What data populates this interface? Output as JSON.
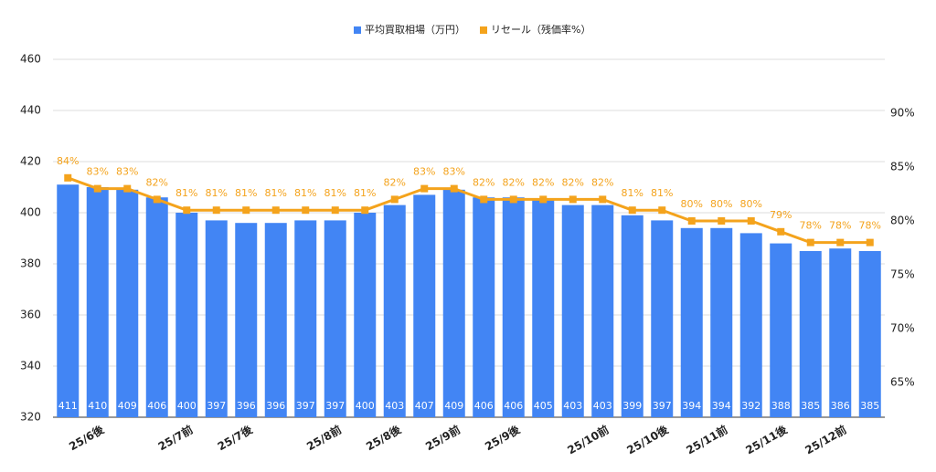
{
  "chart_data": {
    "type": "bar_line",
    "categories": [
      null,
      "25/6後",
      null,
      null,
      "25/7前",
      null,
      "25/7後",
      null,
      null,
      "25/8前",
      null,
      "25/8後",
      null,
      "25/9前",
      null,
      "25/9後",
      null,
      null,
      "25/10前",
      null,
      "25/10後",
      null,
      "25/11前",
      null,
      "25/11後",
      null,
      "25/12前",
      null
    ],
    "series": [
      {
        "name": "平均買取相場（万円）",
        "color": "#4285f4",
        "kind": "bar",
        "values": [
          411,
          410,
          409,
          406,
          400,
          397,
          396,
          396,
          397,
          397,
          400,
          403,
          407,
          409,
          406,
          406,
          405,
          403,
          403,
          399,
          397,
          394,
          394,
          392,
          388,
          385,
          386,
          385
        ]
      },
      {
        "name": "リセール（残価率%）",
        "color": "#f4a31c",
        "kind": "line",
        "axis": "y2",
        "values": [
          84,
          83,
          83,
          82,
          81,
          81,
          81,
          81,
          81,
          81,
          81,
          82,
          83,
          83,
          82,
          82,
          82,
          82,
          82,
          81,
          81,
          80,
          80,
          80,
          79,
          78,
          78,
          78
        ],
        "value_labels": [
          "84%",
          "83%",
          "83%",
          "82%",
          "81%",
          "81%",
          "81%",
          "81%",
          "81%",
          "81%",
          "81%",
          "82%",
          "83%",
          "83%",
          "82%",
          "82%",
          "82%",
          "82%",
          "82%",
          "81%",
          "81%",
          "80%",
          "80%",
          "80%",
          "79%",
          "78%",
          "78%",
          "78%"
        ]
      }
    ],
    "ylim": [
      320,
      460
    ],
    "yticks": [
      320,
      340,
      360,
      380,
      400,
      420,
      440,
      460
    ],
    "y2lim": [
      61.78,
      95
    ],
    "y2ticks": [
      {
        "value": 65,
        "label": "65%"
      },
      {
        "value": 70,
        "label": "70%"
      },
      {
        "value": 75,
        "label": "75%"
      },
      {
        "value": 80,
        "label": "80%"
      },
      {
        "value": 85,
        "label": "85%"
      },
      {
        "value": 90,
        "label": "90%"
      }
    ],
    "grid": true,
    "legend": "top"
  }
}
